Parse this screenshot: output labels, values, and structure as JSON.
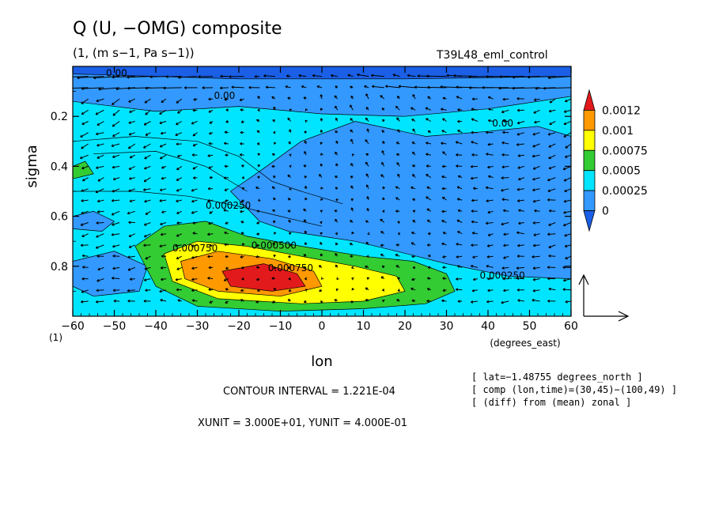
{
  "title": "Q (U, −OMG) composite",
  "subtitle": "(1, (m s−1, Pa s−1))",
  "run_label": "T39L48_eml_control",
  "footer": {
    "contour_interval": "CONTOUR INTERVAL = 1.221E-04",
    "units": "XUNIT = 3.000E+01, YUNIT = 4.000E-01",
    "info": [
      "[ lat=−1.48755 degrees_north ]",
      "[ comp (lon,time)=(30,45)−(100,49) ]",
      "[ (diff) from (mean) zonal ]"
    ]
  },
  "chart_data": {
    "type": "heatmap",
    "title": "Q (U, −OMG) composite",
    "xlabel": "lon",
    "x_unit_label": "(degrees_east)",
    "ylabel": "sigma",
    "y_corner_label": "(1)",
    "xlim": [
      -60,
      60
    ],
    "ylim": [
      0,
      1
    ],
    "y_reversed": true,
    "x_ticks": [
      -60,
      -50,
      -40,
      -30,
      -20,
      -10,
      0,
      10,
      20,
      30,
      40,
      50,
      60
    ],
    "x_tick_labels": [
      "−60",
      "−50",
      "−40",
      "−30",
      "−20",
      "−10",
      "0",
      "10",
      "20",
      "30",
      "40",
      "50",
      "60"
    ],
    "y_ticks": [
      0.2,
      0.4,
      0.6,
      0.8
    ],
    "y_tick_labels": [
      "0.2",
      "0.4",
      "0.6",
      "0.8"
    ],
    "colorbar": {
      "levels": [
        "0.0012",
        "0.001",
        "0.00075",
        "0.0005",
        "0.00025",
        "0"
      ],
      "colors": [
        "#e31a1c",
        "#ff9900",
        "#ffff00",
        "#33cc33",
        "#00e5ff",
        "#3399ff",
        "#1a5fe6"
      ]
    },
    "contour_labels": [
      {
        "text": "0.00",
        "x": -52,
        "y": 0.04
      },
      {
        "text": "0.00",
        "x": -26,
        "y": 0.13
      },
      {
        "text": "0.00",
        "x": 41,
        "y": 0.24
      },
      {
        "text": "0.000250",
        "x": -28,
        "y": 0.57
      },
      {
        "text": "0.000750",
        "x": -36,
        "y": 0.74
      },
      {
        "text": "0.000500",
        "x": -17,
        "y": 0.73
      },
      {
        "text": "0.000750",
        "x": -13,
        "y": 0.82
      },
      {
        "text": "0.000250",
        "x": 38,
        "y": 0.85
      }
    ],
    "vector_reference": {
      "u": 30,
      "w": 0.4
    }
  }
}
